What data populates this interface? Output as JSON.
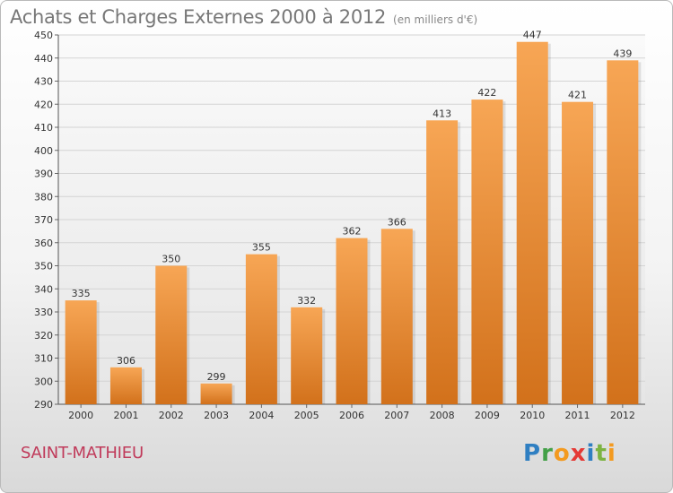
{
  "header": {
    "title": "Achats et Charges Externes 2000 à 2012",
    "subtitle": "(en milliers d'€)"
  },
  "footer": {
    "commune": "SAINT-MATHIEU",
    "logo_text": "Proxiti"
  },
  "colors": {
    "bar_light": "#f7a655",
    "bar_dark": "#d2711b",
    "commune_text": "#c03a5a"
  },
  "chart_data": {
    "type": "bar",
    "categories": [
      "2000",
      "2001",
      "2002",
      "2003",
      "2004",
      "2005",
      "2006",
      "2007",
      "2008",
      "2009",
      "2010",
      "2011",
      "2012"
    ],
    "values": [
      335,
      306,
      350,
      299,
      355,
      332,
      362,
      366,
      413,
      422,
      447,
      421,
      439
    ],
    "title": "Achats et Charges Externes 2000 à 2012",
    "subtitle": "(en milliers d'€)",
    "xlabel": "",
    "ylabel": "",
    "ylim": [
      290,
      450
    ],
    "yticks": [
      290,
      300,
      310,
      320,
      330,
      340,
      350,
      360,
      370,
      380,
      390,
      400,
      410,
      420,
      430,
      440,
      450
    ],
    "grid": true,
    "legend": "none"
  }
}
